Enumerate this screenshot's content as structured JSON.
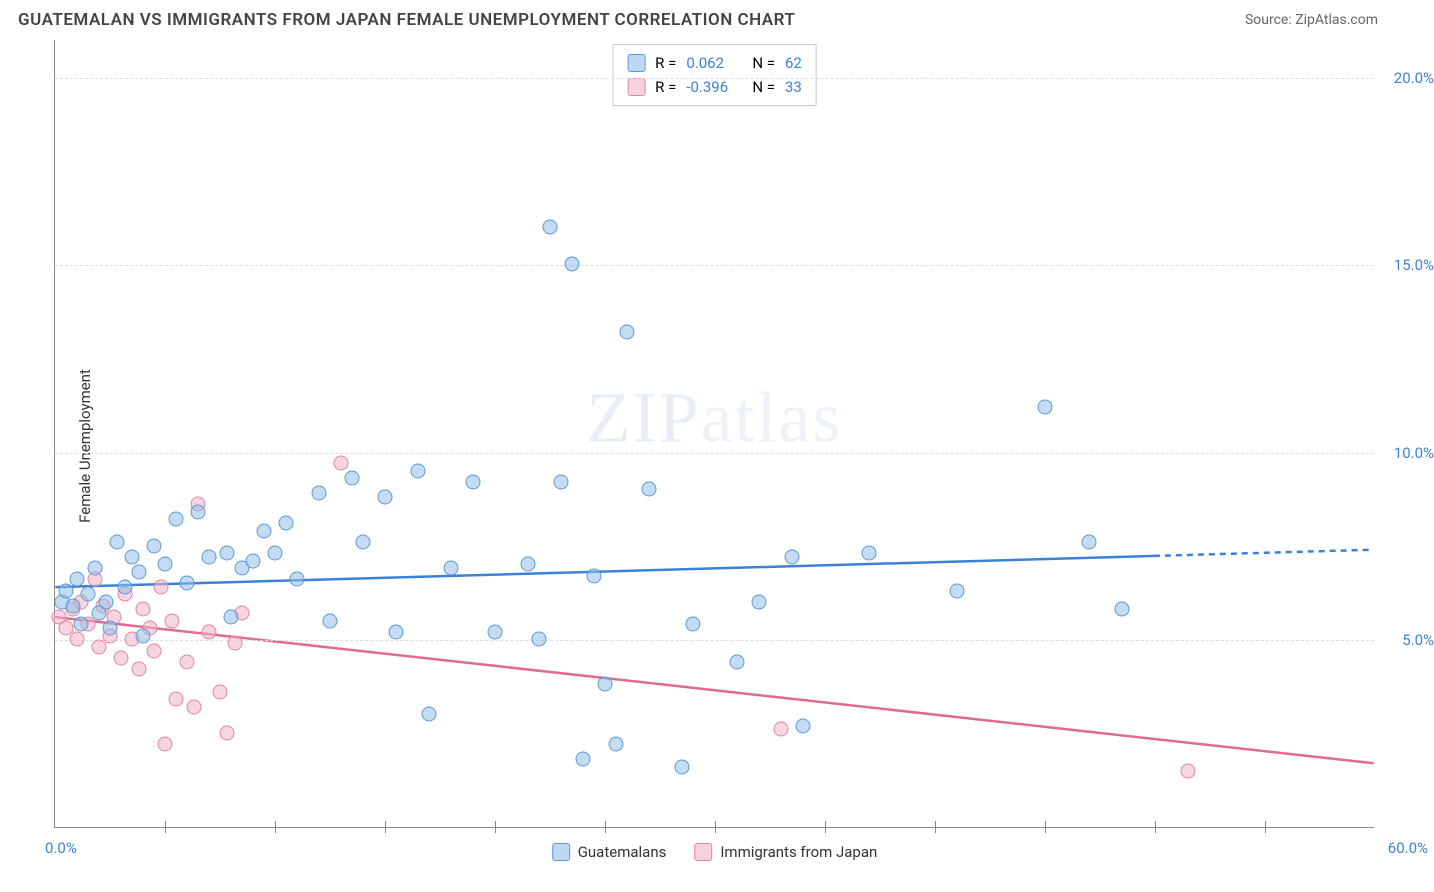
{
  "header": {
    "title": "GUATEMALAN VS IMMIGRANTS FROM JAPAN FEMALE UNEMPLOYMENT CORRELATION CHART",
    "source_prefix": "Source: ",
    "source": "ZipAtlas.com"
  },
  "axes": {
    "ylabel": "Female Unemployment",
    "x_min": 0,
    "x_max": 60,
    "y_min": 0,
    "y_max": 21,
    "x_origin_label": "0.0%",
    "x_end_label": "60.0%",
    "y_ticks": [
      {
        "v": 5,
        "label": "5.0%"
      },
      {
        "v": 10,
        "label": "10.0%"
      },
      {
        "v": 15,
        "label": "15.0%"
      },
      {
        "v": 20,
        "label": "20.0%"
      }
    ],
    "x_tick_positions": [
      5,
      10,
      15,
      20,
      25,
      30,
      35,
      40,
      45,
      50,
      55
    ],
    "label_color_blue": "#3b82d6"
  },
  "watermark": {
    "bold": "ZIP",
    "light": "atlas"
  },
  "stats": {
    "series1": {
      "r_label": "R =",
      "r": "0.062",
      "n_label": "N =",
      "n": "62"
    },
    "series2": {
      "r_label": "R =",
      "r": "-0.396",
      "n_label": "N =",
      "n": "33"
    }
  },
  "legend": {
    "s1": "Guatemalans",
    "s2": "Immigrants from Japan"
  },
  "colors": {
    "blue_line": "#3b82d6",
    "pink_line": "#e06b8f",
    "blue_fill": "rgba(147,190,232,0.55)",
    "pink_fill": "rgba(241,178,198,0.55)"
  },
  "trend_lines": {
    "blue": {
      "x1": 0,
      "y1": 6.4,
      "x2": 60,
      "y2": 7.4,
      "solid_until_x": 50
    },
    "pink": {
      "x1": 0,
      "y1": 5.6,
      "x2": 60,
      "y2": 1.7
    }
  },
  "series_blue": [
    [
      0.3,
      6.0
    ],
    [
      0.5,
      6.3
    ],
    [
      0.8,
      5.9
    ],
    [
      1.0,
      6.6
    ],
    [
      1.2,
      5.4
    ],
    [
      1.5,
      6.2
    ],
    [
      1.8,
      6.9
    ],
    [
      2.0,
      5.7
    ],
    [
      2.3,
      6.0
    ],
    [
      2.5,
      5.3
    ],
    [
      2.8,
      7.6
    ],
    [
      3.2,
      6.4
    ],
    [
      3.5,
      7.2
    ],
    [
      3.8,
      6.8
    ],
    [
      4.0,
      5.1
    ],
    [
      4.5,
      7.5
    ],
    [
      5.0,
      7.0
    ],
    [
      5.5,
      8.2
    ],
    [
      6.0,
      6.5
    ],
    [
      6.5,
      8.4
    ],
    [
      7.0,
      7.2
    ],
    [
      7.8,
      7.3
    ],
    [
      8.0,
      5.6
    ],
    [
      8.5,
      6.9
    ],
    [
      9.0,
      7.1
    ],
    [
      9.5,
      7.9
    ],
    [
      10.0,
      7.3
    ],
    [
      10.5,
      8.1
    ],
    [
      11.0,
      6.6
    ],
    [
      12.0,
      8.9
    ],
    [
      12.5,
      5.5
    ],
    [
      13.5,
      9.3
    ],
    [
      14.0,
      7.6
    ],
    [
      15.0,
      8.8
    ],
    [
      15.5,
      5.2
    ],
    [
      16.5,
      9.5
    ],
    [
      17.0,
      3.0
    ],
    [
      18.0,
      6.9
    ],
    [
      19.0,
      9.2
    ],
    [
      20.0,
      5.2
    ],
    [
      21.5,
      7.0
    ],
    [
      22.0,
      5.0
    ],
    [
      22.5,
      16.0
    ],
    [
      23.0,
      9.2
    ],
    [
      23.5,
      15.0
    ],
    [
      24.0,
      1.8
    ],
    [
      24.5,
      6.7
    ],
    [
      25.0,
      3.8
    ],
    [
      25.5,
      2.2
    ],
    [
      26.0,
      13.2
    ],
    [
      27.0,
      9.0
    ],
    [
      28.5,
      1.6
    ],
    [
      29.0,
      5.4
    ],
    [
      31.0,
      4.4
    ],
    [
      32.0,
      6.0
    ],
    [
      33.5,
      7.2
    ],
    [
      34.0,
      2.7
    ],
    [
      37.0,
      7.3
    ],
    [
      41.0,
      6.3
    ],
    [
      45.0,
      11.2
    ],
    [
      47.0,
      7.6
    ],
    [
      48.5,
      5.8
    ]
  ],
  "series_pink": [
    [
      0.2,
      5.6
    ],
    [
      0.5,
      5.3
    ],
    [
      0.8,
      5.8
    ],
    [
      1.0,
      5.0
    ],
    [
      1.2,
      6.0
    ],
    [
      1.5,
      5.4
    ],
    [
      1.8,
      6.6
    ],
    [
      2.0,
      4.8
    ],
    [
      2.2,
      5.9
    ],
    [
      2.5,
      5.1
    ],
    [
      2.7,
      5.6
    ],
    [
      3.0,
      4.5
    ],
    [
      3.2,
      6.2
    ],
    [
      3.5,
      5.0
    ],
    [
      3.8,
      4.2
    ],
    [
      4.0,
      5.8
    ],
    [
      4.3,
      5.3
    ],
    [
      4.5,
      4.7
    ],
    [
      5.0,
      2.2
    ],
    [
      5.3,
      5.5
    ],
    [
      5.5,
      3.4
    ],
    [
      6.0,
      4.4
    ],
    [
      6.3,
      3.2
    ],
    [
      6.5,
      8.6
    ],
    [
      7.0,
      5.2
    ],
    [
      7.5,
      3.6
    ],
    [
      7.8,
      2.5
    ],
    [
      8.2,
      4.9
    ],
    [
      8.5,
      5.7
    ],
    [
      13.0,
      9.7
    ],
    [
      33.0,
      2.6
    ],
    [
      51.5,
      1.5
    ],
    [
      4.8,
      6.4
    ]
  ]
}
